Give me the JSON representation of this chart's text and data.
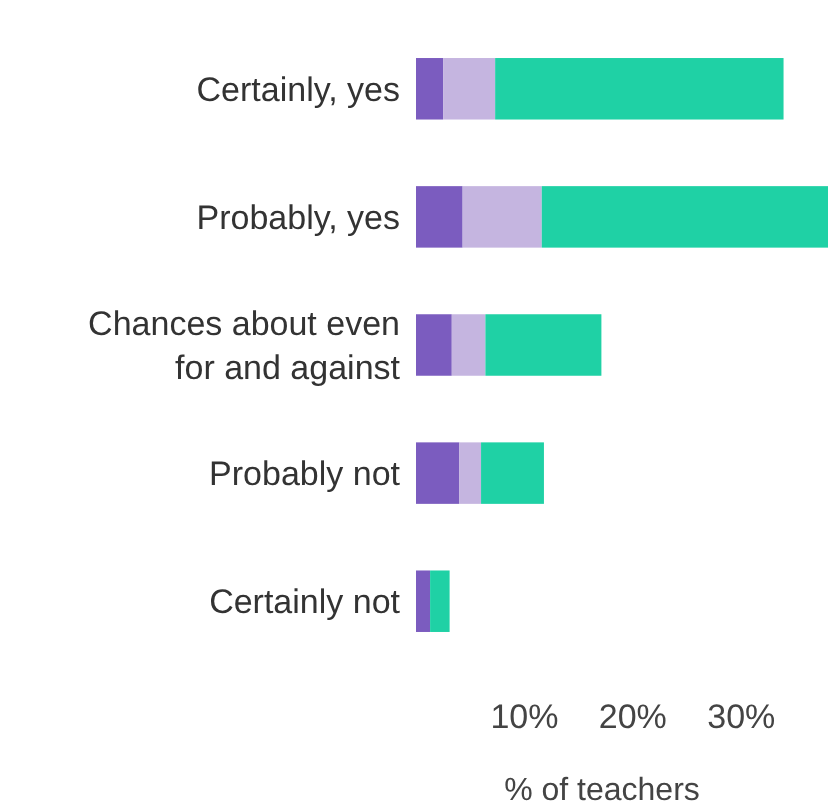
{
  "chart_data": {
    "type": "bar",
    "orientation": "horizontal",
    "stacked": true,
    "xlabel": "% of teachers",
    "categories": [
      "Certainly, yes",
      "Probably, yes",
      "Chances about even for and against",
      "Probably not",
      "Certainly not"
    ],
    "series": [
      {
        "color": "#7b5cbf",
        "values": [
          2.5,
          4.3,
          3.3,
          4,
          1.3
        ]
      },
      {
        "color": "#c5b5e0",
        "values": [
          4.8,
          7.3,
          3.1,
          2,
          0
        ]
      },
      {
        "color": "#1fd1a5",
        "values": [
          26.6,
          26.4,
          10.7,
          5.8,
          1.8
        ]
      }
    ],
    "xlim": [
      0,
      38
    ],
    "xticks": [
      {
        "value": 10,
        "label": "10%"
      },
      {
        "value": 20,
        "label": "20%"
      },
      {
        "value": 30,
        "label": "30%"
      }
    ],
    "grid": false
  }
}
